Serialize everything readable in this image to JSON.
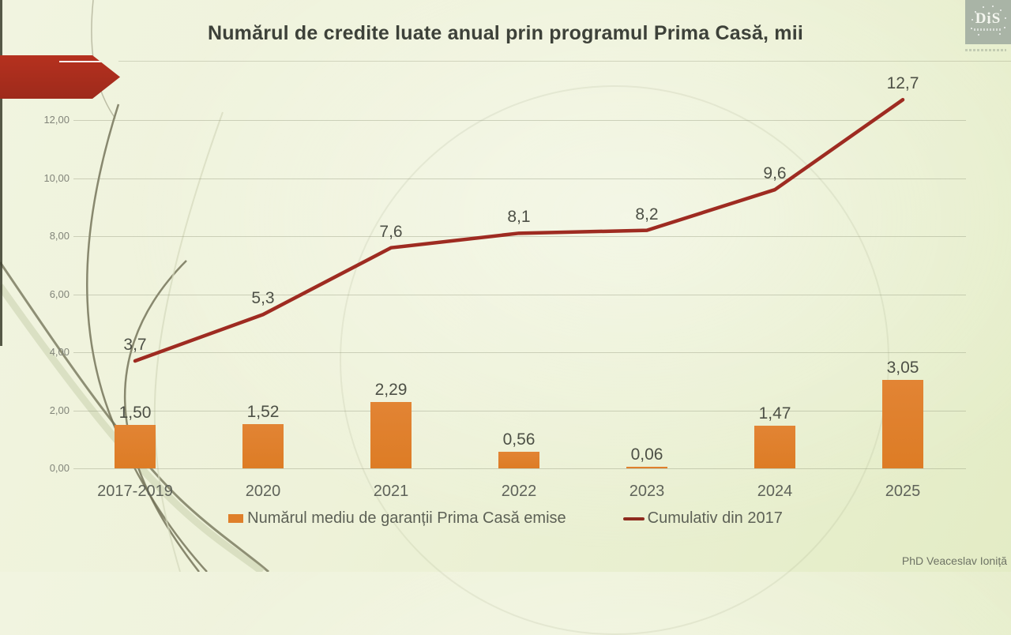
{
  "slide": {
    "title": "Numărul de credite luate anual prin programul Prima Casă, mii",
    "credit": "PhD Veaceslav Ioniță",
    "logo_text": "DiS"
  },
  "legend": {
    "bars_label": "Numărul mediu de garanții  Prima Casă emise",
    "line_label": "Cumulativ din 2017"
  },
  "colors": {
    "bar": "#df7f2a",
    "line": "#9e2b21",
    "arrow": "#ad2c1e",
    "background": "#edf1d8",
    "label_text": "#4d5046",
    "axis_text": "#82857a"
  },
  "chart_data": {
    "type": "bar",
    "title": "Numărul de credite luate anual prin programul Prima Casă, mii",
    "categories": [
      "2017-2019",
      "2020",
      "2021",
      "2022",
      "2023",
      "2024",
      "2025"
    ],
    "series": [
      {
        "name": "Numărul mediu de garanții  Prima Casă emise",
        "type": "bar",
        "color": "#df7f2a",
        "values": [
          1.5,
          1.52,
          2.29,
          0.56,
          0.06,
          1.47,
          3.05
        ],
        "labels": [
          "1,50",
          "1,52",
          "2,29",
          "0,56",
          "0,06",
          "1,47",
          "3,05"
        ]
      },
      {
        "name": "Cumulativ din 2017",
        "type": "line",
        "color": "#9e2b21",
        "values": [
          3.7,
          5.3,
          7.6,
          8.1,
          8.2,
          9.6,
          12.7
        ],
        "labels": [
          "3,7",
          "5,3",
          "7,6",
          "8,1",
          "8,2",
          "9,6",
          "12,7"
        ]
      }
    ],
    "y_axis": {
      "min": 0,
      "max": 12,
      "step": 2,
      "tick_labels": [
        "0,00",
        "2,00",
        "4,00",
        "6,00",
        "8,00",
        "10,00",
        "12,00"
      ]
    },
    "xlabel": "",
    "ylabel": "",
    "grid": true,
    "legend_position": "bottom",
    "value_format": "comma-decimal"
  }
}
